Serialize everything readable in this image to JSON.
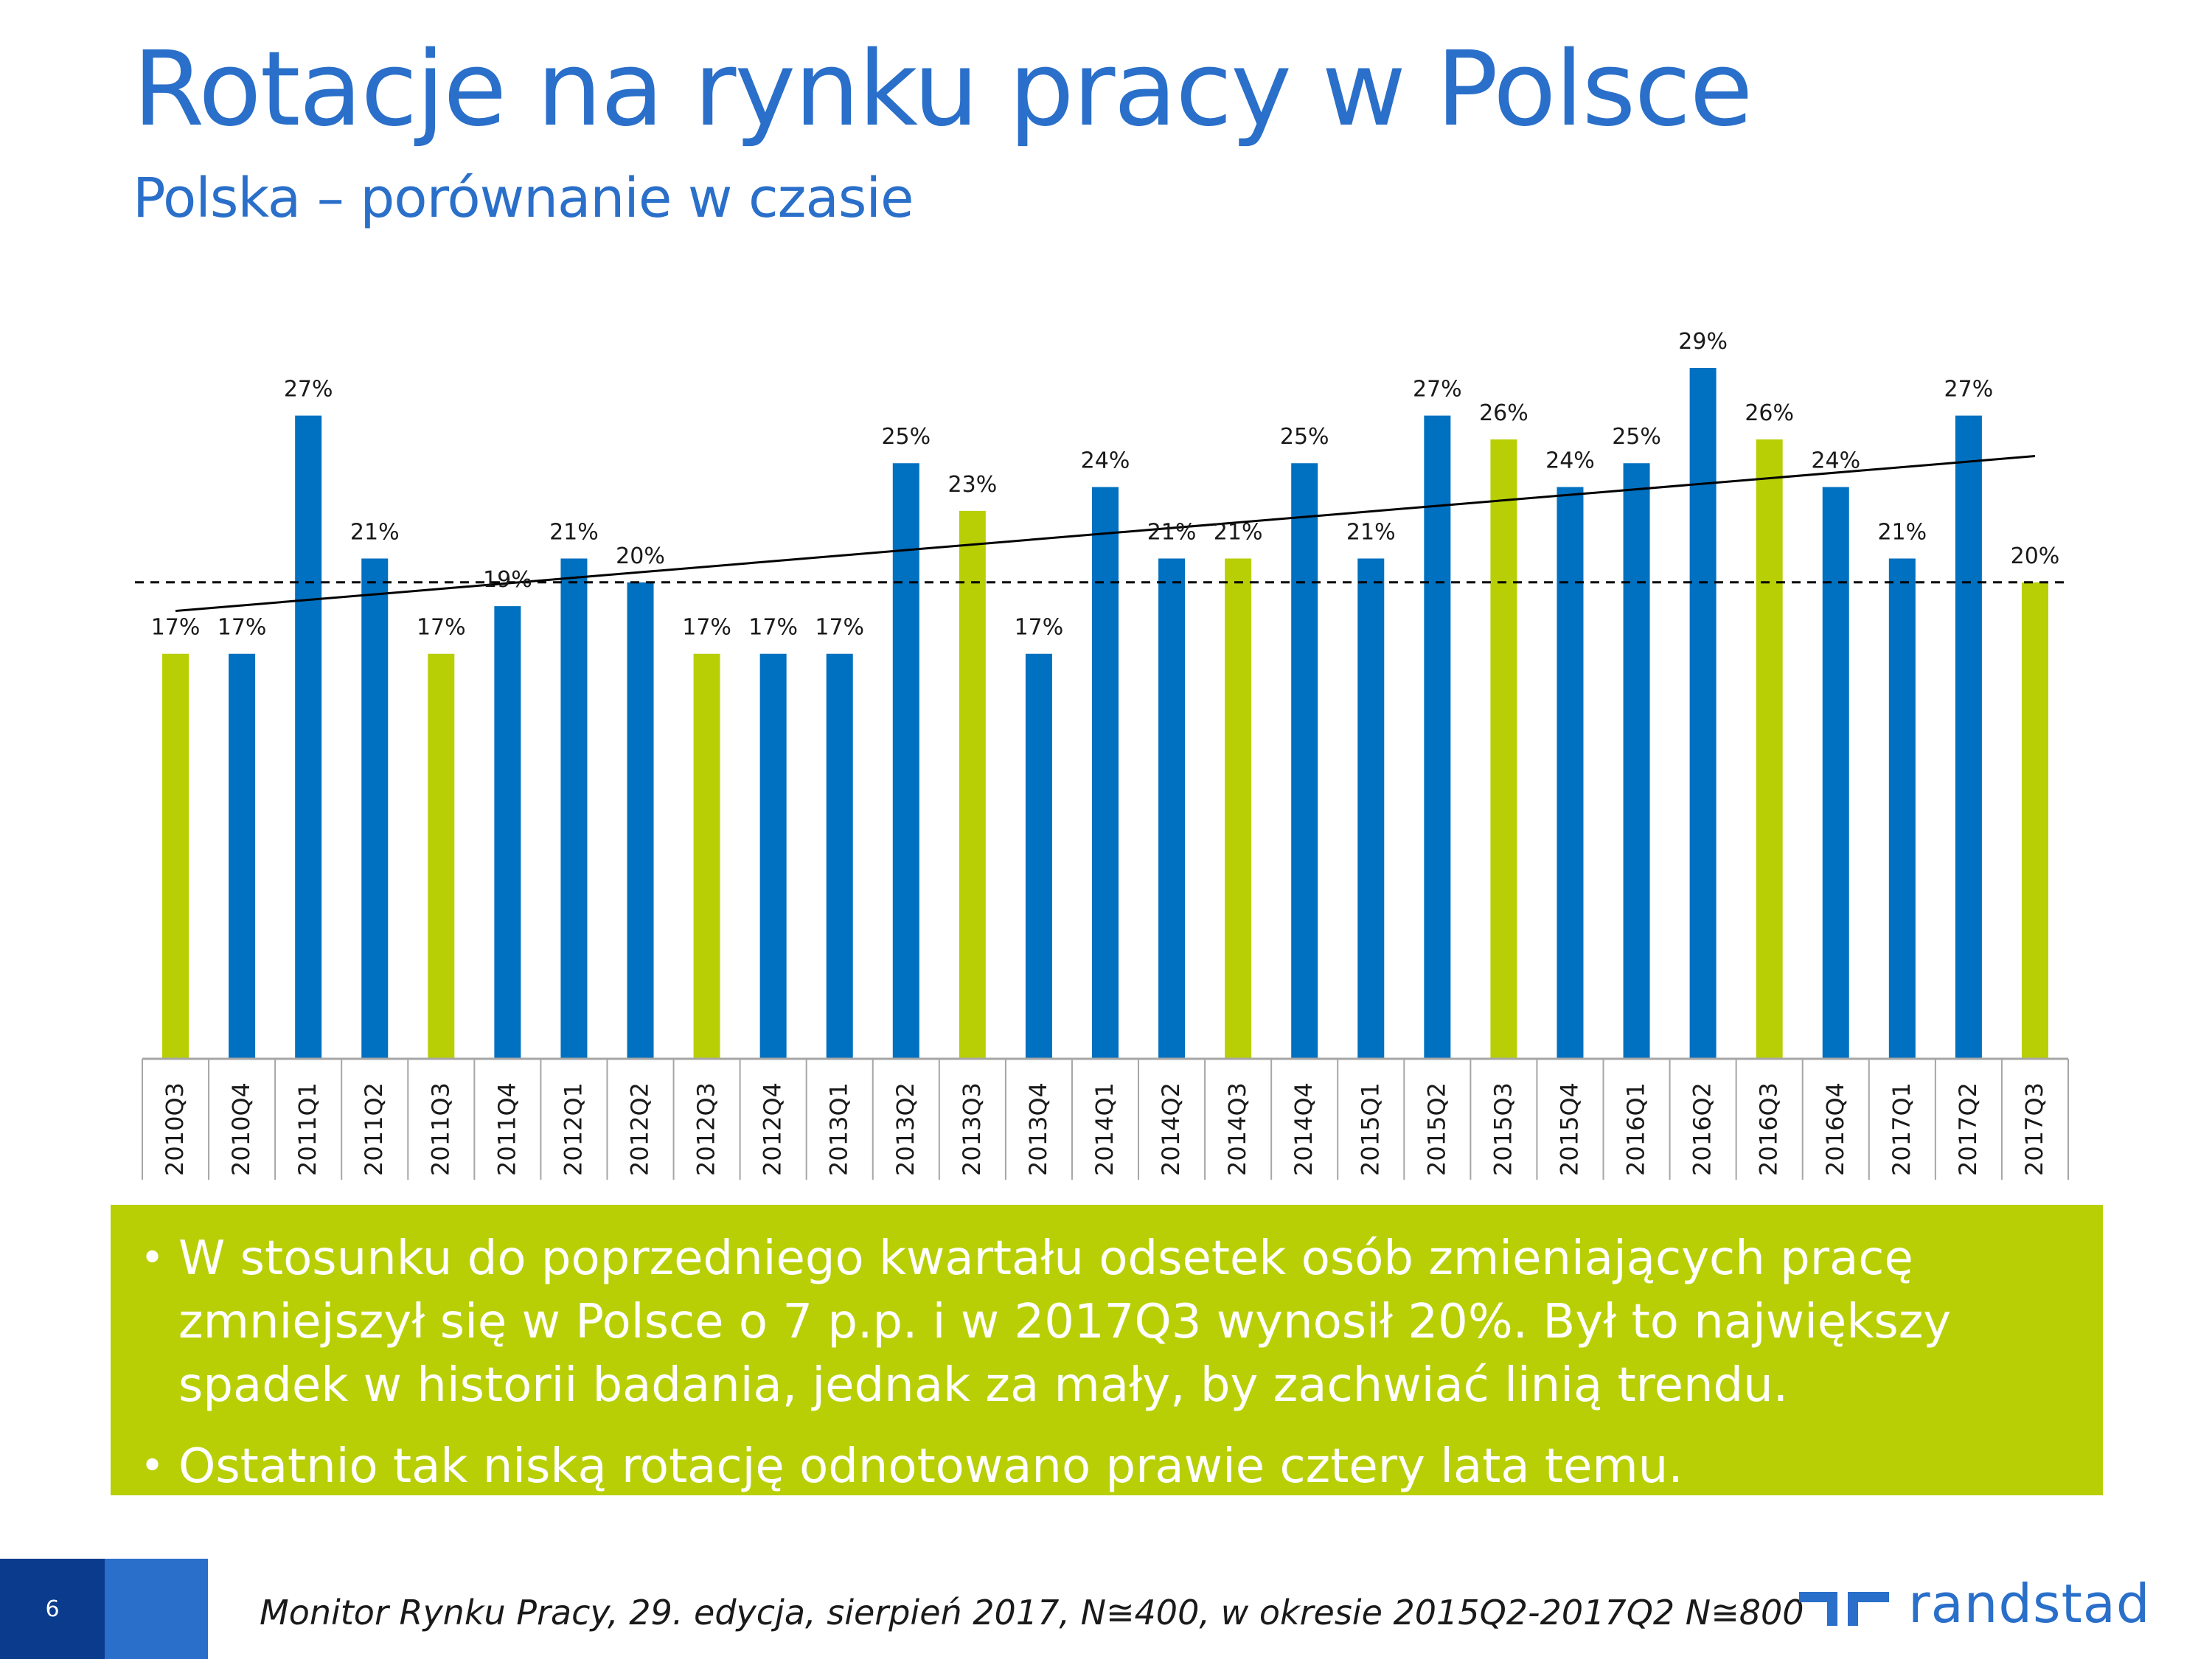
{
  "header": {
    "title": "Rotacje na rynku pracy w Polsce",
    "subtitle": "Polska – porównanie w czasie"
  },
  "colors": {
    "blue": "#0070c0",
    "green": "#b8cf05",
    "title": "#2a6fc9"
  },
  "chart_data": {
    "type": "bar",
    "title": "",
    "xlabel": "",
    "ylabel": "",
    "ylim": [
      0,
      33
    ],
    "categories": [
      "2010Q3",
      "2010Q4",
      "2011Q1",
      "2011Q2",
      "2011Q3",
      "2011Q4",
      "2012Q1",
      "2012Q2",
      "2012Q3",
      "2012Q4",
      "2013Q1",
      "2013Q2",
      "2013Q3",
      "2013Q4",
      "2014Q1",
      "2014Q2",
      "2014Q3",
      "2014Q4",
      "2015Q1",
      "2015Q2",
      "2015Q3",
      "2015Q4",
      "2016Q1",
      "2016Q2",
      "2016Q3",
      "2016Q4",
      "2017Q1",
      "2017Q2",
      "2017Q3"
    ],
    "values": [
      17,
      17,
      27,
      21,
      17,
      19,
      21,
      20,
      17,
      17,
      17,
      25,
      23,
      17,
      24,
      21,
      21,
      25,
      21,
      27,
      26,
      24,
      25,
      29,
      26,
      24,
      21,
      27,
      20
    ],
    "value_labels": [
      "17%",
      "17%",
      "27%",
      "21%",
      "17%",
      "19%",
      "21%",
      "20%",
      "17%",
      "17%",
      "17%",
      "25%",
      "23%",
      "17%",
      "24%",
      "21%",
      "21%",
      "25%",
      "21%",
      "27%",
      "26%",
      "24%",
      "25%",
      "29%",
      "26%",
      "24%",
      "21%",
      "27%",
      "20%"
    ],
    "bar_colors": [
      "green",
      "blue",
      "blue",
      "blue",
      "green",
      "blue",
      "blue",
      "blue",
      "green",
      "blue",
      "blue",
      "blue",
      "green",
      "blue",
      "blue",
      "blue",
      "green",
      "blue",
      "blue",
      "blue",
      "green",
      "blue",
      "blue",
      "blue",
      "green",
      "blue",
      "blue",
      "blue",
      "green"
    ],
    "reference_line": {
      "value": 20,
      "style": "dashed"
    },
    "trend_line": {
      "start": 18.8,
      "end": 25.3
    },
    "grid": false,
    "legend": "none"
  },
  "summary": {
    "bullets": [
      "W stosunku do poprzedniego kwartału odsetek osób zmieniających pracę zmniejszył się w Polsce o 7 p.p. i w 2017Q3 wynosił 20%. Był to największy spadek w historii badania, jednak za mały, by zachwiać linią trendu.",
      "Ostatnio tak niską rotację odnotowano prawie cztery lata temu."
    ],
    "bullet_char": "•"
  },
  "footer": {
    "page_number": "6",
    "source": "Monitor Rynku Pracy, 29. edycja, sierpień 2017, N≅400, w okresie 2015Q2-2017Q2 N≅800",
    "logo_text": "randstad"
  }
}
